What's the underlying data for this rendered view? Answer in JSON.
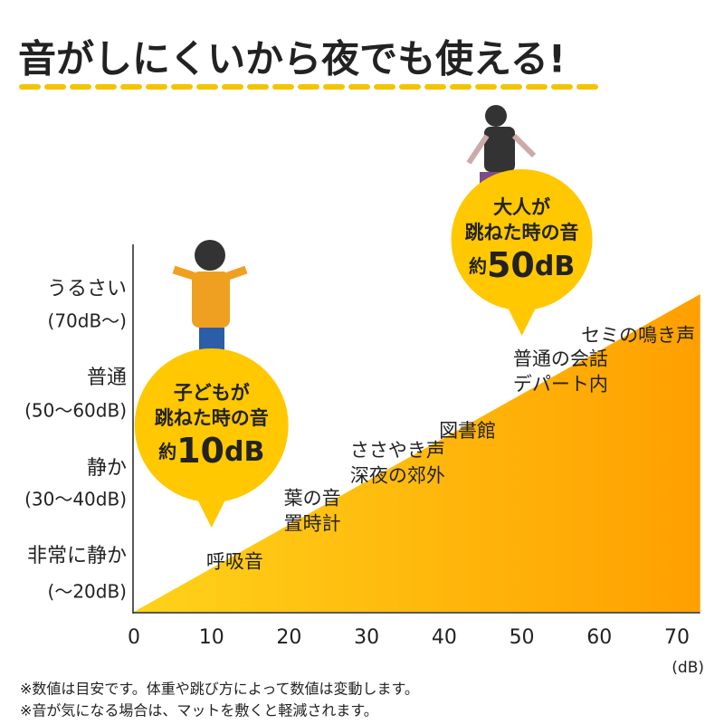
{
  "chart_data": {
    "type": "area",
    "title": "音がしにくいから夜でも使える!",
    "xlim": [
      0,
      73
    ],
    "xticks": [
      0,
      10,
      20,
      30,
      40,
      50,
      60,
      70
    ],
    "x_unit": "(dB)",
    "levels": [
      [
        "うるさい",
        "(70dB〜)"
      ],
      [
        "普通",
        "(50〜60dB)"
      ],
      [
        "静か",
        "(30〜40dB)"
      ],
      [
        "非常に静か",
        "(〜20dB)"
      ]
    ],
    "colors": [
      "#ffd21a",
      "#ffa000"
    ],
    "annotations": [
      {
        "x": 13,
        "lines": [
          "呼吸音"
        ]
      },
      {
        "x": 23,
        "lines": [
          "葉の音",
          "置時計"
        ]
      },
      {
        "x": 34,
        "lines": [
          "ささやき声",
          "深夜の郊外"
        ]
      },
      {
        "x": 43,
        "lines": [
          "図書館"
        ]
      },
      {
        "x": 55,
        "lines": [
          "普通の会話",
          "デパート内"
        ]
      },
      {
        "x": 65,
        "lines": [
          "セミの鳴き声"
        ]
      }
    ],
    "callouts": [
      {
        "lines": [
          "子どもが",
          "跳ねた時の音"
        ],
        "prefix": "約",
        "value": 10,
        "unit": "dB"
      },
      {
        "lines": [
          "大人が",
          "跳ねた時の音"
        ],
        "prefix": "約",
        "value": 50,
        "unit": "dB"
      }
    ],
    "notes": [
      "※数値は目安です。体重や跳び方によって数値は変動します。",
      "※音が気になる場合は、マットを敷くと軽減されます。"
    ]
  }
}
